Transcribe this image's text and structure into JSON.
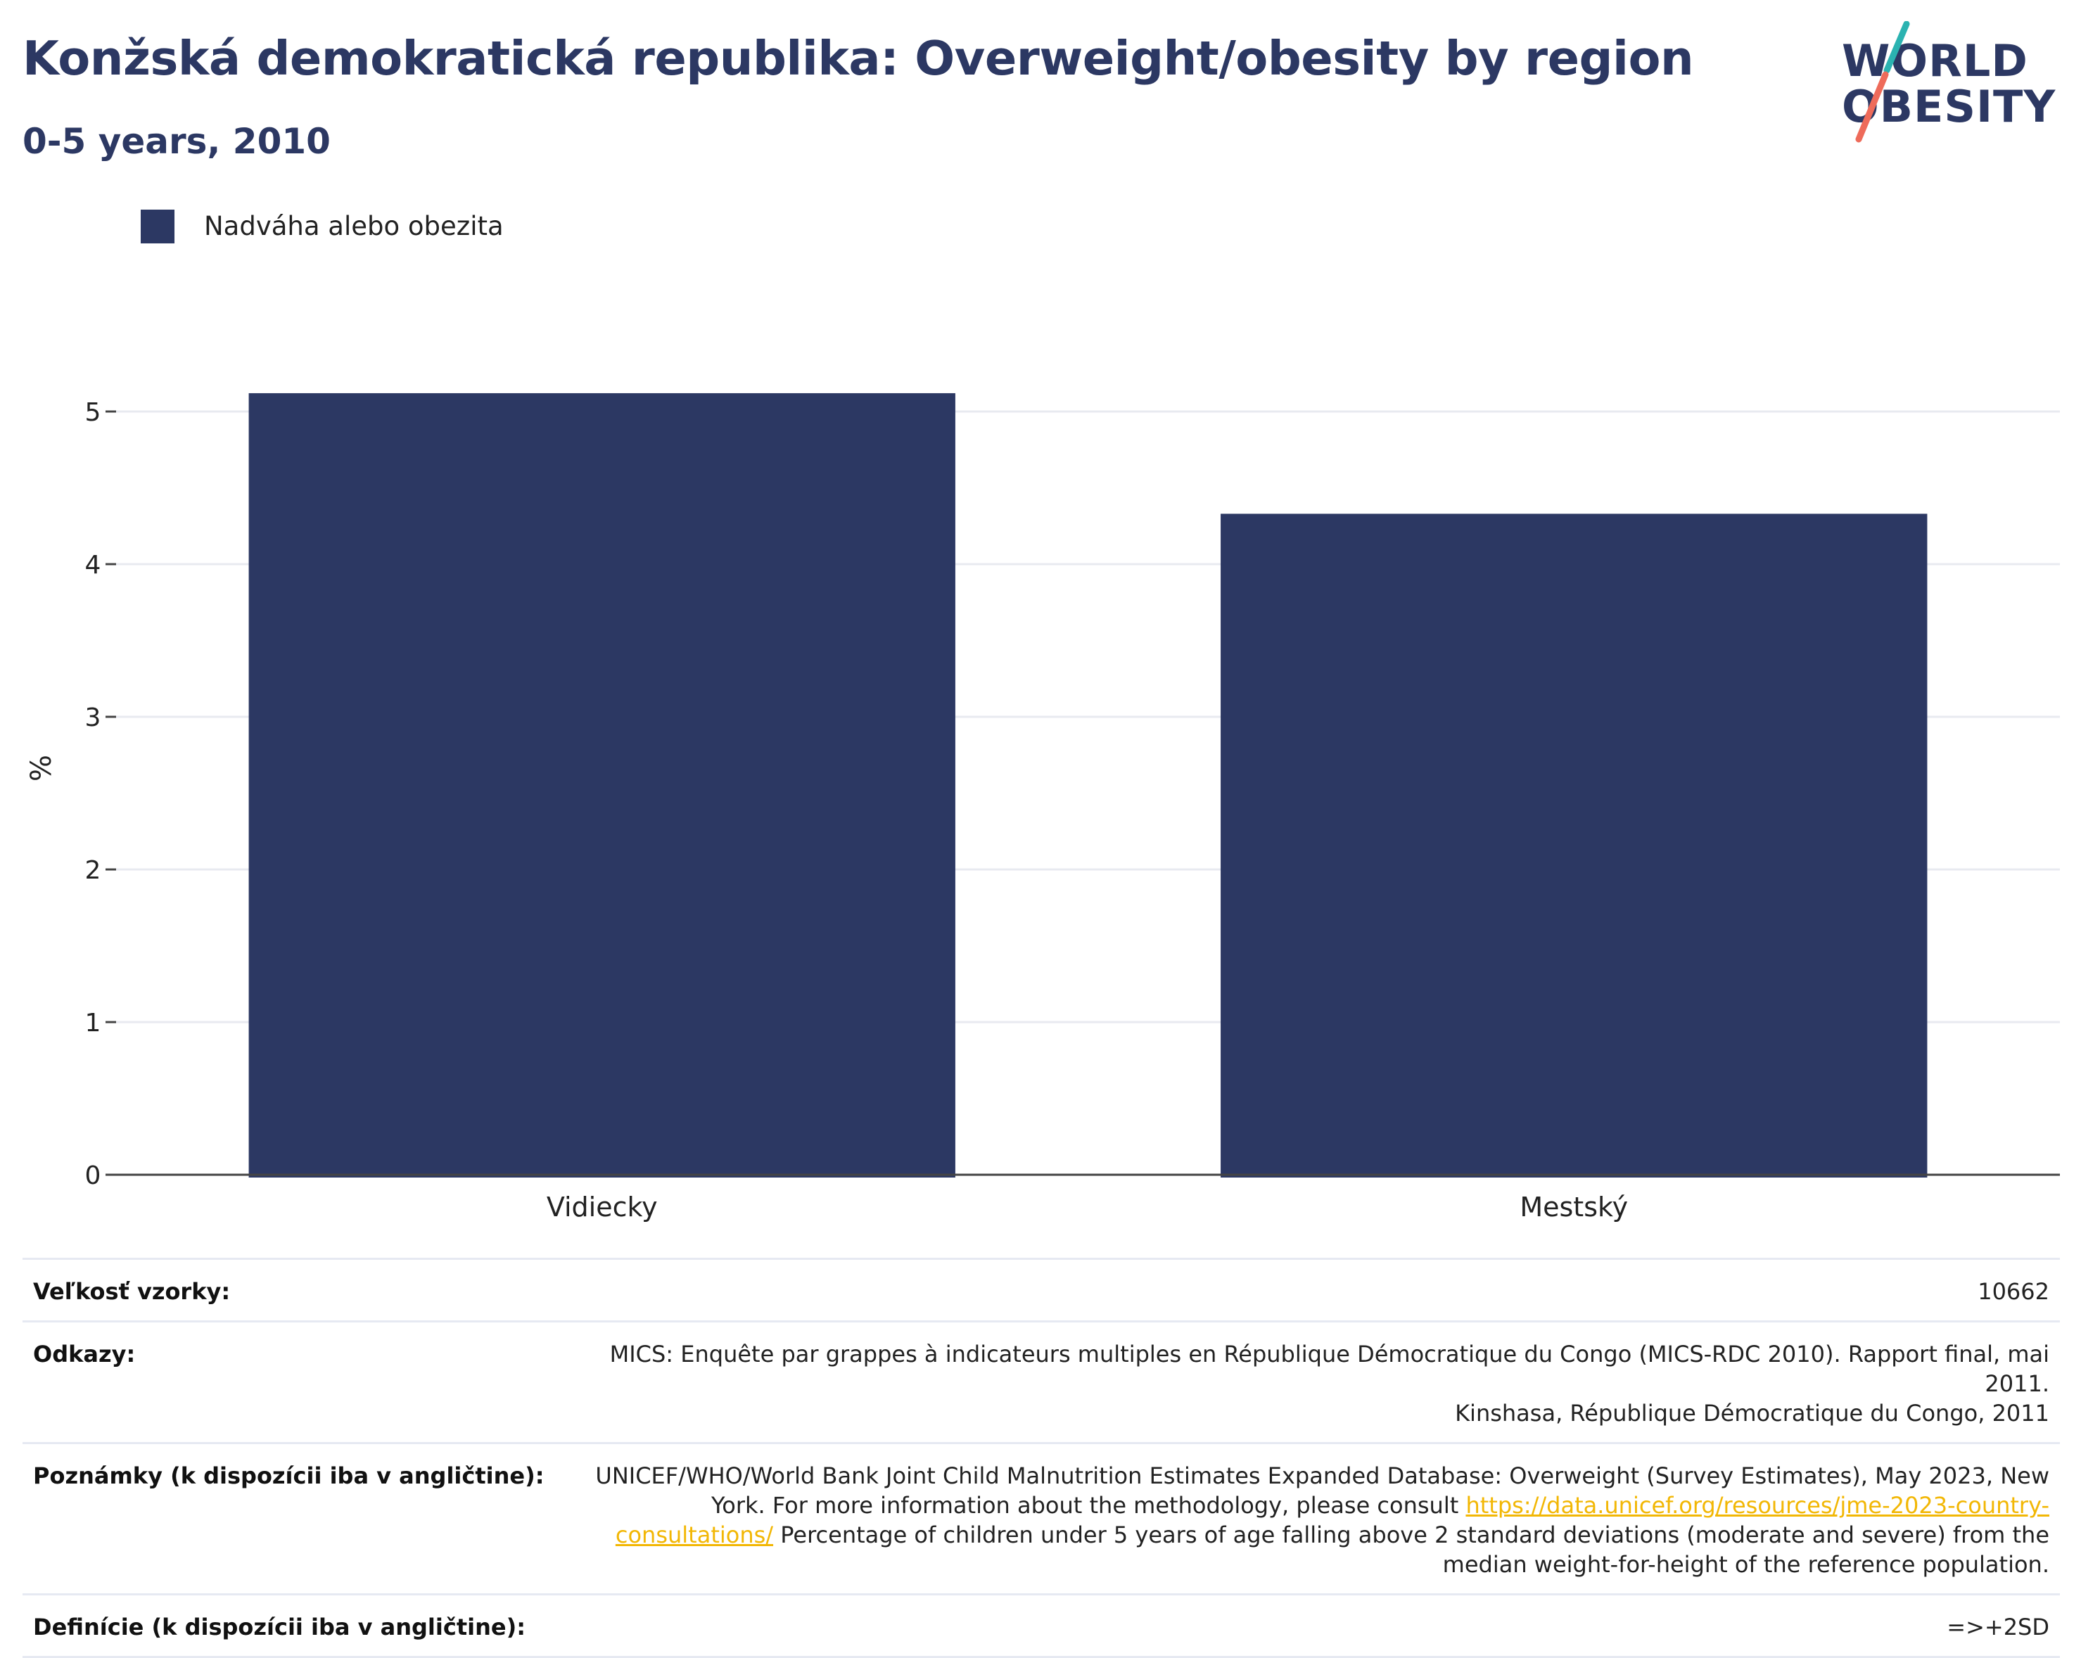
{
  "title": "Konžská demokratická republika: Overweight/obesity by region",
  "subtitle": "0-5 years, 2010",
  "logo": {
    "line1": "WORLD",
    "line2": "OBESITY",
    "accent_teal": "#2bb3b1",
    "accent_coral": "#ee6b5a"
  },
  "legend": {
    "label": "Nadváha alebo obezita",
    "color": "#2c3863"
  },
  "chart_data": {
    "type": "bar",
    "categories": [
      "Vidiecky",
      "Mestský"
    ],
    "series": [
      {
        "name": "Nadváha alebo obezita",
        "values": [
          5.12,
          4.33
        ],
        "color": "#2c3863"
      }
    ],
    "ylabel": "%",
    "xlabel": "",
    "ylim": [
      0,
      5.5
    ],
    "yticks": [
      0,
      1,
      2,
      3,
      4,
      5
    ],
    "grid": true,
    "legend_position": "top-left"
  },
  "info_table": [
    {
      "key": "Veľkosť vzorky:",
      "value": "10662"
    },
    {
      "key": "Odkazy:",
      "lines": [
        "MICS: Enquête par grappes à indicateurs multiples en République Démocratique du Congo (MICS-RDC 2010). Rapport final, mai 2011.",
        "Kinshasa, République Démocratique du Congo, 2011"
      ]
    },
    {
      "key": "Poznámky (k dispozícii iba v angličtine):",
      "text_before": "UNICEF/WHO/World Bank Joint Child Malnutrition Estimates Expanded Database: Overweight (Survey Estimates), May 2023, New York. For more information about the methodology, please consult",
      "link": "https://data.unicef.org/resources/jme-2023-country-consultations/",
      "text_after": "Percentage of children under 5 years of age falling above 2 standard deviations (moderate and severe) from the median weight-for-height of the reference population."
    },
    {
      "key": "Definície (k dispozícii iba v angličtine):",
      "value": "=>+2SD"
    }
  ]
}
